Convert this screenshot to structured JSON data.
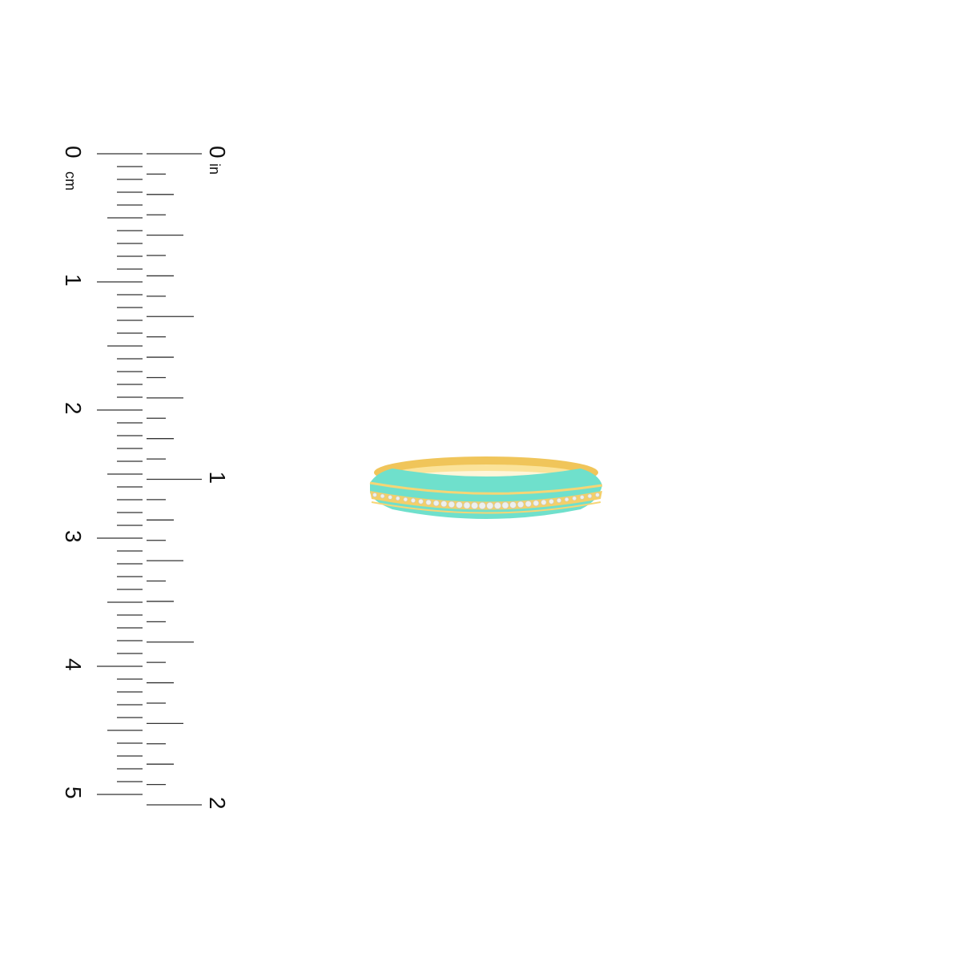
{
  "ruler": {
    "cm_labels": [
      "0",
      "1",
      "2",
      "3",
      "4",
      "5"
    ],
    "cm_unit": "cm",
    "in_labels": [
      "0",
      "1",
      "2"
    ],
    "in_unit": "in",
    "tick_color": "#333333"
  },
  "product": {
    "name": "enamel diamond ring",
    "gold_color": "#f2c75a",
    "enamel_color": "#6fe0cc"
  }
}
